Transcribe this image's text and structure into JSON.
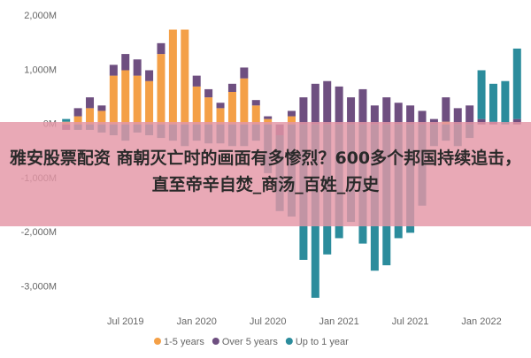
{
  "chart_data": {
    "type": "bar",
    "stacked": true,
    "categories": [
      null,
      null,
      null,
      null,
      null,
      "Jul 2019",
      null,
      null,
      null,
      null,
      null,
      "Jan 2020",
      null,
      null,
      null,
      null,
      null,
      "Jul 2020",
      null,
      null,
      null,
      null,
      null,
      "Jan 2021",
      null,
      null,
      null,
      null,
      null,
      "Jul 2021",
      null,
      null,
      null,
      null,
      null,
      "Jan 2022",
      null,
      null,
      null
    ],
    "series": [
      {
        "name": "1-5 years",
        "color": "#f4a047",
        "values": [
          50,
          150,
          300,
          250,
          900,
          1000,
          900,
          800,
          1300,
          1750,
          1750,
          700,
          500,
          300,
          600,
          850,
          350,
          100,
          0,
          150,
          0,
          0,
          0,
          0,
          0,
          0,
          0,
          0,
          0,
          0,
          0,
          0,
          50,
          0,
          0,
          0,
          0,
          0,
          0
        ]
      },
      {
        "name": "Over 5 years",
        "color": "#6e4f80",
        "values": [
          -100,
          150,
          200,
          100,
          200,
          300,
          300,
          200,
          200,
          0,
          0,
          200,
          150,
          100,
          150,
          200,
          100,
          50,
          -200,
          100,
          500,
          750,
          800,
          700,
          500,
          650,
          350,
          500,
          400,
          350,
          250,
          100,
          450,
          300,
          350,
          100,
          50,
          0,
          100
        ]
      },
      {
        "name": "Up to 1 year",
        "color": "#2b8c9c",
        "values": [
          50,
          -100,
          -100,
          -150,
          -200,
          -300,
          -150,
          -200,
          -250,
          -300,
          -400,
          -300,
          -350,
          -350,
          -400,
          -400,
          -300,
          -900,
          -1400,
          -1700,
          -2500,
          -3200,
          -2400,
          -2100,
          -1800,
          -2200,
          -2700,
          -2600,
          -2100,
          -2000,
          -1500,
          -400,
          -300,
          -400,
          -250,
          900,
          700,
          800,
          1300
        ]
      }
    ],
    "ylim": [
      -3300,
      2150
    ],
    "yticks": [
      {
        "value": 2000,
        "label": "2,000M"
      },
      {
        "value": 1000,
        "label": "1,000M"
      },
      {
        "value": 0,
        "label": "0M"
      },
      {
        "value": -1000,
        "label": "-1,000M"
      },
      {
        "value": -2000,
        "label": "-2,000M"
      },
      {
        "value": -3000,
        "label": "-3,000M"
      }
    ],
    "legend": "bottom"
  },
  "banner": {
    "text": "雅安股票配资 商朝灭亡时的画面有多惨烈？600多个邦国持续追击，直至帝辛自焚_商汤_百姓_历史"
  }
}
